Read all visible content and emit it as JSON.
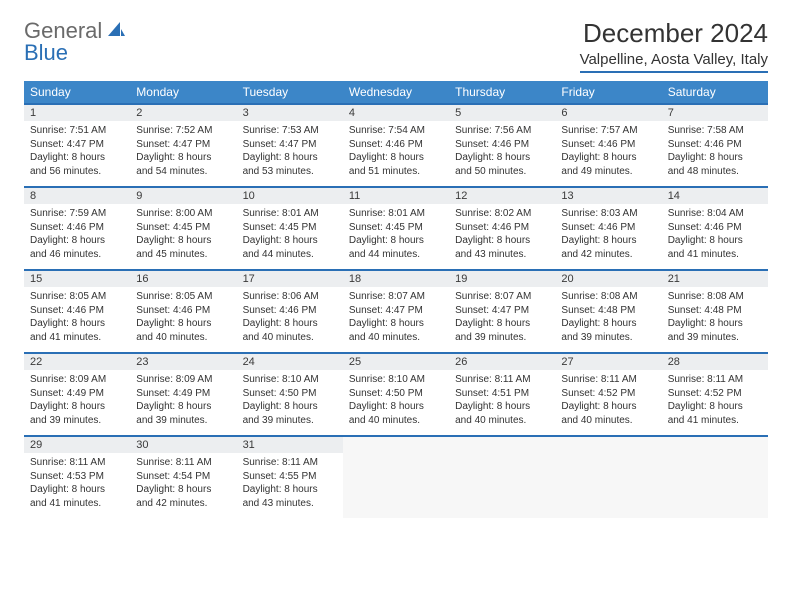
{
  "brand": {
    "part1": "General",
    "part2": "Blue"
  },
  "title": "December 2024",
  "location": "Valpelline, Aosta Valley, Italy",
  "colors": {
    "header_bg": "#3c86c8",
    "header_text": "#ffffff",
    "accent_border": "#2a6fb5",
    "daynum_bg": "#eceef0",
    "page_bg": "#ffffff",
    "text": "#333333",
    "logo_gray": "#6a6a6a"
  },
  "typography": {
    "title_fontsize": 26,
    "location_fontsize": 15,
    "weekday_fontsize": 12,
    "daynum_fontsize": 11,
    "detail_fontsize": 10
  },
  "weekdays": [
    "Sunday",
    "Monday",
    "Tuesday",
    "Wednesday",
    "Thursday",
    "Friday",
    "Saturday"
  ],
  "weeks": [
    {
      "days": [
        {
          "num": "1",
          "sunrise": "Sunrise: 7:51 AM",
          "sunset": "Sunset: 4:47 PM",
          "daylight": "Daylight: 8 hours and 56 minutes."
        },
        {
          "num": "2",
          "sunrise": "Sunrise: 7:52 AM",
          "sunset": "Sunset: 4:47 PM",
          "daylight": "Daylight: 8 hours and 54 minutes."
        },
        {
          "num": "3",
          "sunrise": "Sunrise: 7:53 AM",
          "sunset": "Sunset: 4:47 PM",
          "daylight": "Daylight: 8 hours and 53 minutes."
        },
        {
          "num": "4",
          "sunrise": "Sunrise: 7:54 AM",
          "sunset": "Sunset: 4:46 PM",
          "daylight": "Daylight: 8 hours and 51 minutes."
        },
        {
          "num": "5",
          "sunrise": "Sunrise: 7:56 AM",
          "sunset": "Sunset: 4:46 PM",
          "daylight": "Daylight: 8 hours and 50 minutes."
        },
        {
          "num": "6",
          "sunrise": "Sunrise: 7:57 AM",
          "sunset": "Sunset: 4:46 PM",
          "daylight": "Daylight: 8 hours and 49 minutes."
        },
        {
          "num": "7",
          "sunrise": "Sunrise: 7:58 AM",
          "sunset": "Sunset: 4:46 PM",
          "daylight": "Daylight: 8 hours and 48 minutes."
        }
      ]
    },
    {
      "days": [
        {
          "num": "8",
          "sunrise": "Sunrise: 7:59 AM",
          "sunset": "Sunset: 4:46 PM",
          "daylight": "Daylight: 8 hours and 46 minutes."
        },
        {
          "num": "9",
          "sunrise": "Sunrise: 8:00 AM",
          "sunset": "Sunset: 4:45 PM",
          "daylight": "Daylight: 8 hours and 45 minutes."
        },
        {
          "num": "10",
          "sunrise": "Sunrise: 8:01 AM",
          "sunset": "Sunset: 4:45 PM",
          "daylight": "Daylight: 8 hours and 44 minutes."
        },
        {
          "num": "11",
          "sunrise": "Sunrise: 8:01 AM",
          "sunset": "Sunset: 4:45 PM",
          "daylight": "Daylight: 8 hours and 44 minutes."
        },
        {
          "num": "12",
          "sunrise": "Sunrise: 8:02 AM",
          "sunset": "Sunset: 4:46 PM",
          "daylight": "Daylight: 8 hours and 43 minutes."
        },
        {
          "num": "13",
          "sunrise": "Sunrise: 8:03 AM",
          "sunset": "Sunset: 4:46 PM",
          "daylight": "Daylight: 8 hours and 42 minutes."
        },
        {
          "num": "14",
          "sunrise": "Sunrise: 8:04 AM",
          "sunset": "Sunset: 4:46 PM",
          "daylight": "Daylight: 8 hours and 41 minutes."
        }
      ]
    },
    {
      "days": [
        {
          "num": "15",
          "sunrise": "Sunrise: 8:05 AM",
          "sunset": "Sunset: 4:46 PM",
          "daylight": "Daylight: 8 hours and 41 minutes."
        },
        {
          "num": "16",
          "sunrise": "Sunrise: 8:05 AM",
          "sunset": "Sunset: 4:46 PM",
          "daylight": "Daylight: 8 hours and 40 minutes."
        },
        {
          "num": "17",
          "sunrise": "Sunrise: 8:06 AM",
          "sunset": "Sunset: 4:46 PM",
          "daylight": "Daylight: 8 hours and 40 minutes."
        },
        {
          "num": "18",
          "sunrise": "Sunrise: 8:07 AM",
          "sunset": "Sunset: 4:47 PM",
          "daylight": "Daylight: 8 hours and 40 minutes."
        },
        {
          "num": "19",
          "sunrise": "Sunrise: 8:07 AM",
          "sunset": "Sunset: 4:47 PM",
          "daylight": "Daylight: 8 hours and 39 minutes."
        },
        {
          "num": "20",
          "sunrise": "Sunrise: 8:08 AM",
          "sunset": "Sunset: 4:48 PM",
          "daylight": "Daylight: 8 hours and 39 minutes."
        },
        {
          "num": "21",
          "sunrise": "Sunrise: 8:08 AM",
          "sunset": "Sunset: 4:48 PM",
          "daylight": "Daylight: 8 hours and 39 minutes."
        }
      ]
    },
    {
      "days": [
        {
          "num": "22",
          "sunrise": "Sunrise: 8:09 AM",
          "sunset": "Sunset: 4:49 PM",
          "daylight": "Daylight: 8 hours and 39 minutes."
        },
        {
          "num": "23",
          "sunrise": "Sunrise: 8:09 AM",
          "sunset": "Sunset: 4:49 PM",
          "daylight": "Daylight: 8 hours and 39 minutes."
        },
        {
          "num": "24",
          "sunrise": "Sunrise: 8:10 AM",
          "sunset": "Sunset: 4:50 PM",
          "daylight": "Daylight: 8 hours and 39 minutes."
        },
        {
          "num": "25",
          "sunrise": "Sunrise: 8:10 AM",
          "sunset": "Sunset: 4:50 PM",
          "daylight": "Daylight: 8 hours and 40 minutes."
        },
        {
          "num": "26",
          "sunrise": "Sunrise: 8:11 AM",
          "sunset": "Sunset: 4:51 PM",
          "daylight": "Daylight: 8 hours and 40 minutes."
        },
        {
          "num": "27",
          "sunrise": "Sunrise: 8:11 AM",
          "sunset": "Sunset: 4:52 PM",
          "daylight": "Daylight: 8 hours and 40 minutes."
        },
        {
          "num": "28",
          "sunrise": "Sunrise: 8:11 AM",
          "sunset": "Sunset: 4:52 PM",
          "daylight": "Daylight: 8 hours and 41 minutes."
        }
      ]
    },
    {
      "days": [
        {
          "num": "29",
          "sunrise": "Sunrise: 8:11 AM",
          "sunset": "Sunset: 4:53 PM",
          "daylight": "Daylight: 8 hours and 41 minutes."
        },
        {
          "num": "30",
          "sunrise": "Sunrise: 8:11 AM",
          "sunset": "Sunset: 4:54 PM",
          "daylight": "Daylight: 8 hours and 42 minutes."
        },
        {
          "num": "31",
          "sunrise": "Sunrise: 8:11 AM",
          "sunset": "Sunset: 4:55 PM",
          "daylight": "Daylight: 8 hours and 43 minutes."
        },
        {
          "empty": true
        },
        {
          "empty": true
        },
        {
          "empty": true
        },
        {
          "empty": true
        }
      ]
    }
  ]
}
